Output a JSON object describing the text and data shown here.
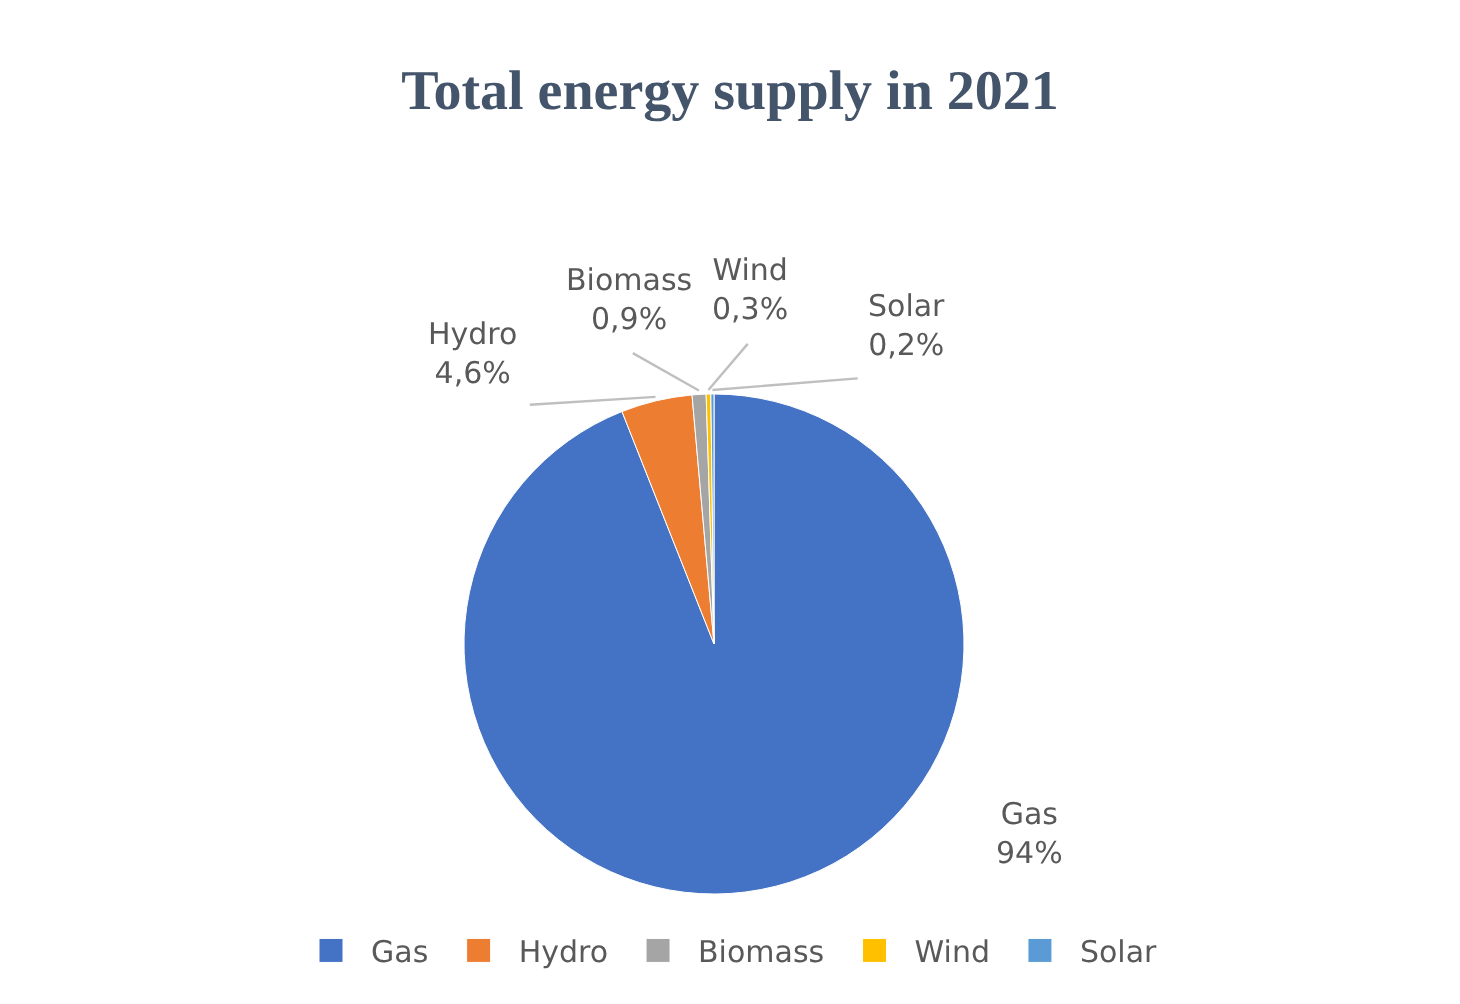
{
  "chart_data": {
    "type": "pie",
    "title": "Total energy supply in 2021",
    "categories": [
      "Gas",
      "Hydro",
      "Biomass",
      "Wind",
      "Solar"
    ],
    "values": [
      94,
      4.6,
      0.9,
      0.3,
      0.2
    ],
    "value_labels": [
      "94%",
      "4,6%",
      "0,9%",
      "0,3%",
      "0,2%"
    ],
    "colors": [
      "#4472c4",
      "#ed7d31",
      "#a5a5a5",
      "#ffc000",
      "#5b9bd5"
    ],
    "legend": "bottom"
  }
}
